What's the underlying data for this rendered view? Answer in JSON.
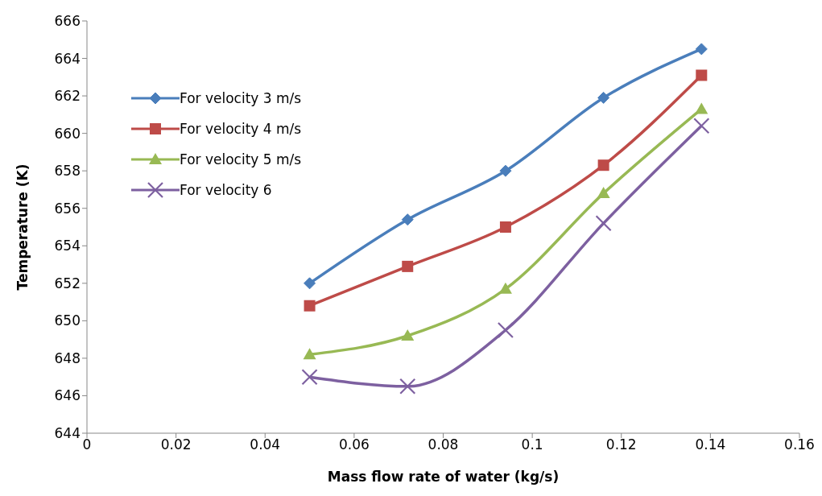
{
  "chart_data": {
    "type": "line",
    "xlabel": "Mass flow rate of water (kg/s)",
    "ylabel": "Temperature (K)",
    "x": [
      0.05,
      0.072,
      0.094,
      0.116,
      0.138
    ],
    "series": [
      {
        "name": "For velocity 3 m/s",
        "color": "#4a7ebb",
        "marker": "diamond",
        "values": [
          652,
          655.4,
          658,
          661.9,
          664.5
        ]
      },
      {
        "name": "For velocity 4 m/s",
        "color": "#be4b48",
        "marker": "square",
        "values": [
          650.8,
          652.9,
          655,
          658.3,
          663.1
        ]
      },
      {
        "name": "For velocity 5 m/s",
        "color": "#98b954",
        "marker": "triangle",
        "values": [
          648.2,
          649.2,
          651.7,
          656.8,
          661.3
        ]
      },
      {
        "name": "For velocity 6",
        "color": "#7d60a0",
        "marker": "cross",
        "values": [
          647,
          646.5,
          649.5,
          655.2,
          660.4
        ]
      }
    ],
    "xlim": [
      0,
      0.16
    ],
    "xticks": [
      0,
      0.02,
      0.04,
      0.06,
      0.08,
      0.1,
      0.12,
      0.14,
      0.16
    ],
    "ylim": [
      644,
      666
    ],
    "yticks": [
      644,
      646,
      648,
      650,
      652,
      654,
      656,
      658,
      660,
      662,
      664,
      666
    ],
    "grid": false,
    "legend": "top left",
    "line_style": "solid"
  }
}
